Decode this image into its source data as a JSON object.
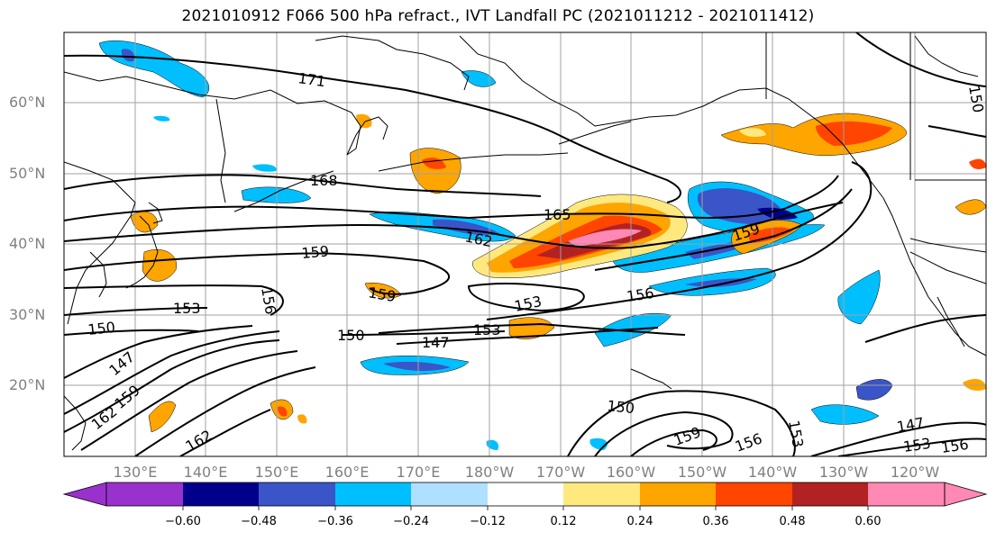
{
  "title": "2021010912 F066 500 hPa refract., IVT Landfall PC (2021011212 - 2021011412)",
  "latitude_labels": [
    "60°N",
    "50°N",
    "40°N",
    "30°N",
    "20°N"
  ],
  "longitude_labels": [
    "130°E",
    "140°E",
    "150°E",
    "160°E",
    "170°E",
    "180°W",
    "170°W",
    "160°W",
    "150°W",
    "140°W",
    "130°W",
    "120°W"
  ],
  "contour_labels": [
    "171",
    "168",
    "165",
    "162",
    "159",
    "159",
    "156",
    "156",
    "153",
    "153",
    "153",
    "150",
    "150",
    "150",
    "147",
    "147",
    "147",
    "162",
    "159",
    "162",
    "159",
    "156",
    "153",
    "153",
    "159",
    "156",
    "150"
  ],
  "colorbar": {
    "ticks": [
      "−0.60",
      "−0.48",
      "−0.36",
      "−0.24",
      "−0.12",
      "0.12",
      "0.24",
      "0.36",
      "0.48",
      "0.60"
    ],
    "colors": [
      "#9932cc",
      "#00008b",
      "#3a55c8",
      "#00bfff",
      "#b0e0ff",
      "#ffffff",
      "#ffe97f",
      "#ffa500",
      "#ff4500",
      "#b22222",
      "#ff88b4"
    ]
  },
  "colors": {
    "neg_strong": "#00008b",
    "neg_mid": "#3a55c8",
    "neg": "#00bfff",
    "neg_weak": "#b0e0ff",
    "pos_weak": "#ffe97f",
    "pos": "#ffa500",
    "pos_mid": "#ff4500",
    "pos_strong": "#b22222",
    "pos_max": "#ff88b4",
    "grid": "#a0a0a0",
    "contour": "#000000"
  }
}
